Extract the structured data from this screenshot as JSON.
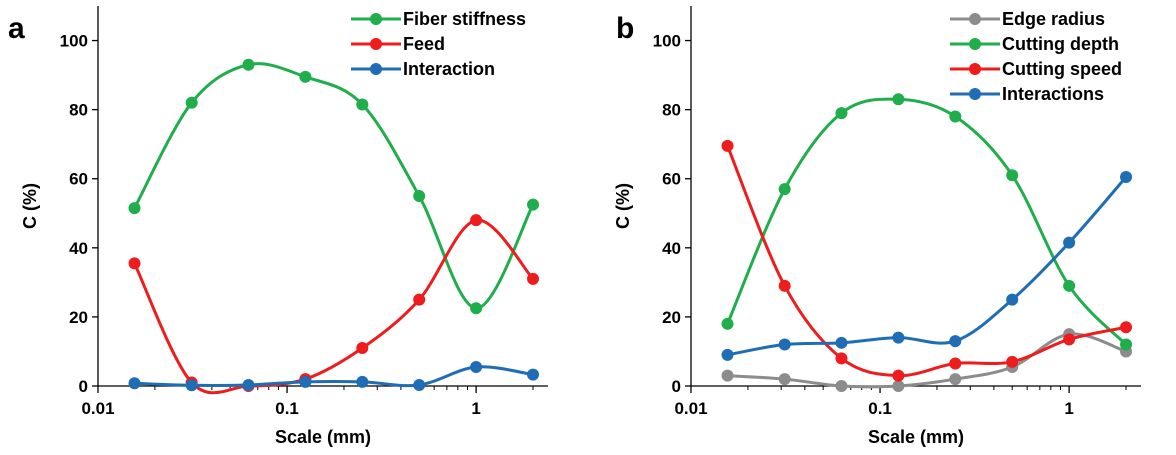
{
  "chart_data": [
    {
      "type": "line",
      "panel_label": "a",
      "xlabel": "Scale (mm)",
      "ylabel": "C (%)",
      "xscale": "log",
      "xlim": [
        0.01,
        2.4
      ],
      "ylim": [
        0,
        110
      ],
      "x_ticks": [
        0.01,
        0.1,
        1
      ],
      "x_tick_labels": [
        "0.01",
        "0.1",
        "1"
      ],
      "y_ticks": [
        0,
        20,
        40,
        60,
        80,
        100
      ],
      "y_tick_labels": [
        "0",
        "20",
        "40",
        "60",
        "80",
        "100"
      ],
      "grid": false,
      "legend_position": "top-right",
      "smooth": true,
      "series": [
        {
          "name": "Fiber stiffness",
          "color": "#1fae4b",
          "x": [
            0.0156,
            0.0313,
            0.0625,
            0.125,
            0.25,
            0.5,
            1.0,
            2.0
          ],
          "y": [
            51.5,
            82,
            93,
            89.5,
            81.5,
            55,
            22.5,
            52.5
          ]
        },
        {
          "name": "Feed",
          "color": "#ee1c1c",
          "x": [
            0.0156,
            0.0313,
            0.0625,
            0.125,
            0.25,
            0.5,
            1.0,
            2.0
          ],
          "y": [
            35.5,
            1,
            0,
            2,
            11,
            25,
            48,
            31
          ]
        },
        {
          "name": "Interaction",
          "color": "#1f6db5",
          "x": [
            0.0156,
            0.0313,
            0.0625,
            0.125,
            0.25,
            0.5,
            1.0,
            2.0
          ],
          "y": [
            0.8,
            0.2,
            0.3,
            1.2,
            1.2,
            0.3,
            5.5,
            3.3
          ]
        }
      ]
    },
    {
      "type": "line",
      "panel_label": "b",
      "xlabel": "Scale (mm)",
      "ylabel": "C (%)",
      "xscale": "log",
      "xlim": [
        0.01,
        2.4
      ],
      "ylim": [
        0,
        110
      ],
      "x_ticks": [
        0.01,
        0.1,
        1
      ],
      "x_tick_labels": [
        "0.01",
        "0.1",
        "1"
      ],
      "y_ticks": [
        0,
        20,
        40,
        60,
        80,
        100
      ],
      "y_tick_labels": [
        "0",
        "20",
        "40",
        "60",
        "80",
        "100"
      ],
      "grid": false,
      "legend_position": "top-right",
      "smooth": true,
      "series": [
        {
          "name": "Edge radius",
          "color": "#8c8c8c",
          "x": [
            0.0156,
            0.0313,
            0.0625,
            0.125,
            0.25,
            0.5,
            1.0,
            2.0
          ],
          "y": [
            3,
            2,
            0,
            0,
            2,
            5.5,
            15,
            10
          ]
        },
        {
          "name": "Cutting depth",
          "color": "#1fae4b",
          "x": [
            0.0156,
            0.0313,
            0.0625,
            0.125,
            0.25,
            0.5,
            1.0,
            2.0
          ],
          "y": [
            18,
            57,
            79,
            83,
            78,
            61,
            29,
            12
          ]
        },
        {
          "name": "Cutting speed",
          "color": "#ee1c1c",
          "x": [
            0.0156,
            0.0313,
            0.0625,
            0.125,
            0.25,
            0.5,
            1.0,
            2.0
          ],
          "y": [
            69.5,
            29,
            8,
            3,
            6.5,
            7,
            13.5,
            17
          ]
        },
        {
          "name": "Interactions",
          "color": "#1f6db5",
          "x": [
            0.0156,
            0.0313,
            0.0625,
            0.125,
            0.25,
            0.5,
            1.0,
            2.0
          ],
          "y": [
            9,
            12,
            12.5,
            14,
            13,
            25,
            41.5,
            60.5
          ]
        }
      ]
    }
  ]
}
